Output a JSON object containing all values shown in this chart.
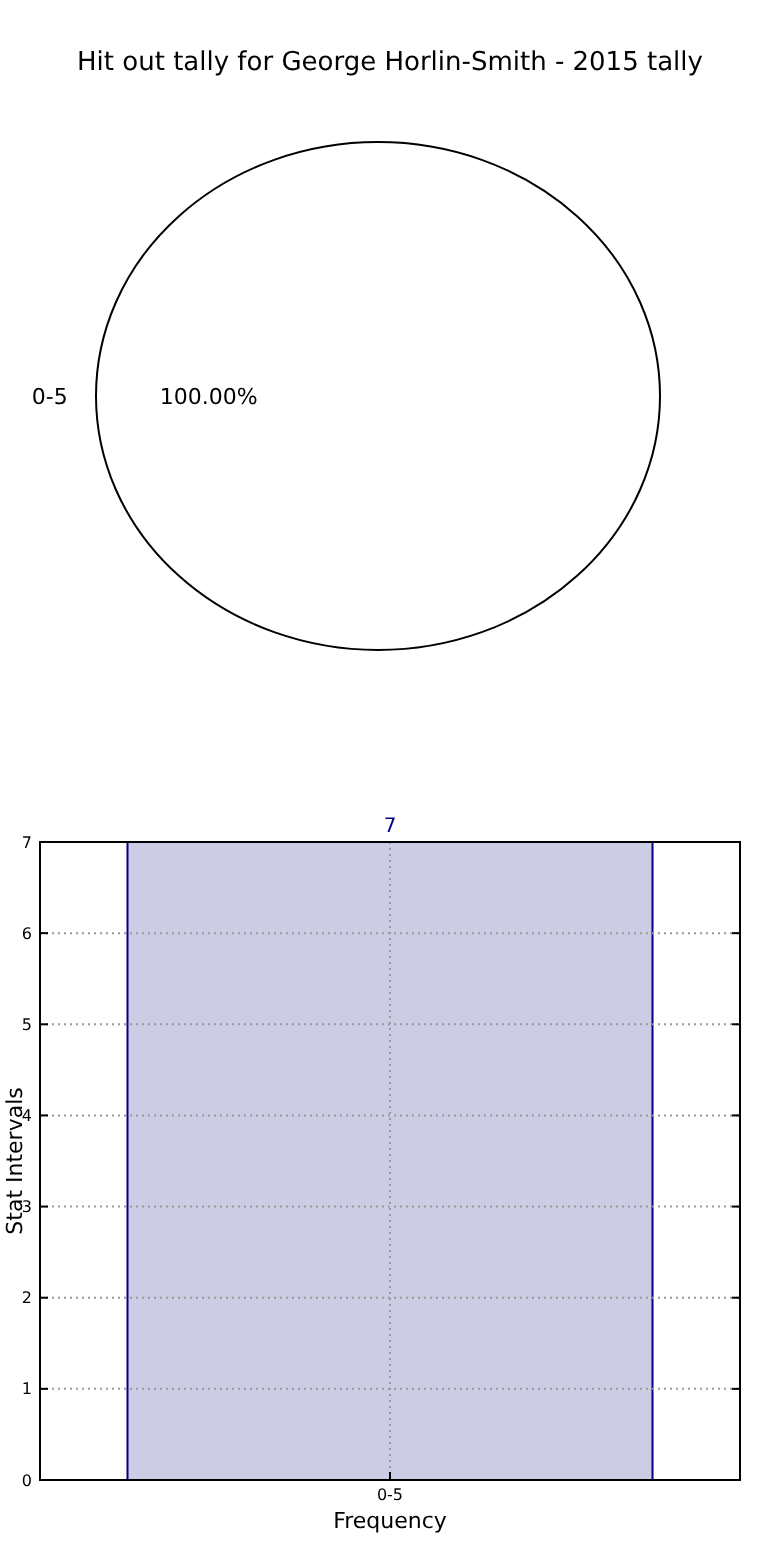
{
  "chart_data": [
    {
      "type": "pie",
      "title": "Hit out tally for George Horlin-Smith - 2015 tally",
      "categories": [
        "0-5"
      ],
      "values": [
        100
      ],
      "colors": [
        "#ffffff"
      ],
      "value_labels": [
        "100.00%"
      ]
    },
    {
      "type": "bar",
      "categories": [
        "0-5"
      ],
      "values": [
        7
      ],
      "color": "#cccce4",
      "ylim": [
        0,
        7
      ],
      "yticks": [
        0,
        1,
        2,
        3,
        4,
        5,
        6,
        7
      ],
      "xlabel": "Frequency",
      "ylabel": "Stat Intervals",
      "grid": true,
      "data_labels": true
    }
  ]
}
